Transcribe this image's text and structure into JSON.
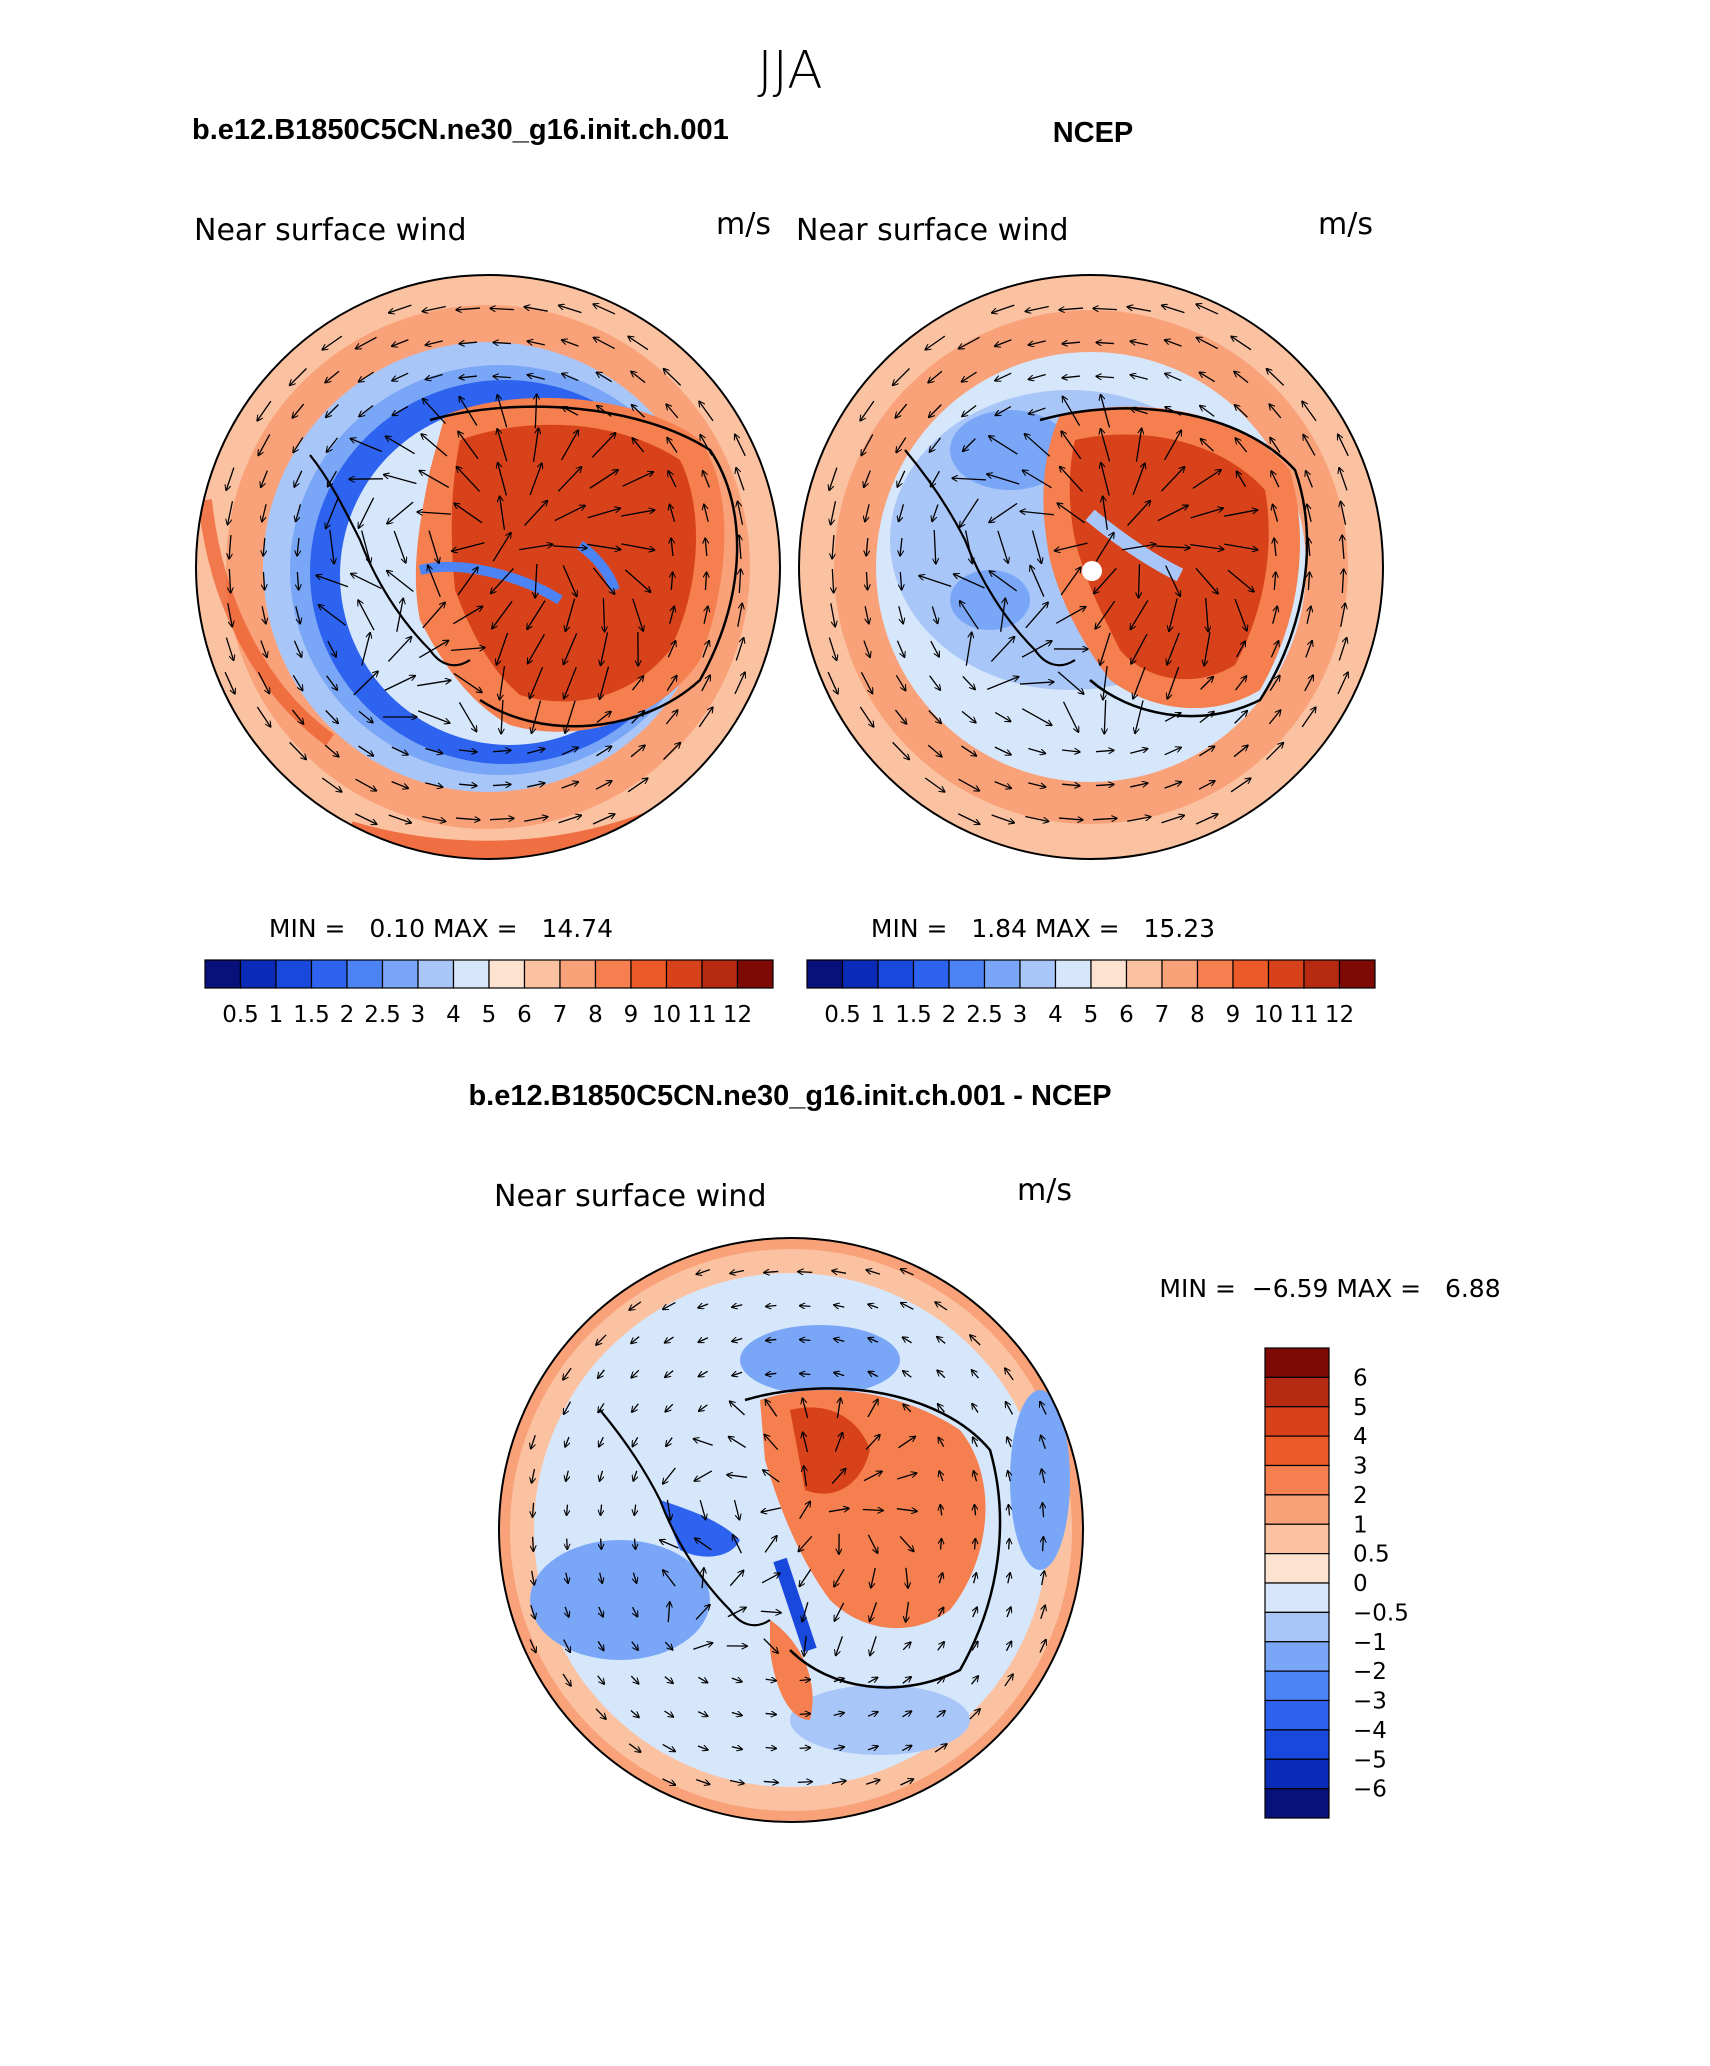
{
  "page_title": "JJA",
  "panels": [
    {
      "id": "model",
      "header": "b.e12.B1850C5CN.ne30_g16.init.ch.001",
      "variable": "Near surface wind",
      "units": "m/s",
      "stats": {
        "min_label": "MIN =",
        "min": "0.10",
        "max_label": "MAX =",
        "max": "14.74"
      }
    },
    {
      "id": "obs",
      "header": "NCEP",
      "variable": "Near surface wind",
      "units": "m/s",
      "stats": {
        "min_label": "MIN =",
        "min": "1.84",
        "max_label": "MAX =",
        "max": "15.23"
      }
    },
    {
      "id": "diff",
      "header": "b.e12.B1850C5CN.ne30_g16.init.ch.001 - NCEP",
      "variable": "Near surface wind",
      "units": "m/s",
      "stats": {
        "min_label": "MIN =",
        "min": "−6.59",
        "max_label": "MAX =",
        "max": "6.88"
      }
    }
  ],
  "colorbar_abs": {
    "labels": [
      "0.5",
      "1",
      "1.5",
      "2",
      "2.5",
      "3",
      "4",
      "5",
      "6",
      "7",
      "8",
      "9",
      "10",
      "11",
      "12"
    ],
    "colors": [
      "#08107a",
      "#0a2bb8",
      "#1848dc",
      "#2e63ef",
      "#4d84f5",
      "#7aa6f7",
      "#a9c6f9",
      "#d6e6fb",
      "#fde3cf",
      "#fbc2a2",
      "#f9a27a",
      "#f57f4e",
      "#ec5a2a",
      "#d8421a",
      "#b52a10",
      "#7e0a06"
    ]
  },
  "colorbar_diff": {
    "labels": [
      "6",
      "5",
      "4",
      "3",
      "2",
      "1",
      "0.5",
      "0",
      "−0.5",
      "−1",
      "−2",
      "−3",
      "−4",
      "−5",
      "−6"
    ],
    "colors": [
      "#7e0a06",
      "#b52a10",
      "#d8421a",
      "#ec5a2a",
      "#f57f4e",
      "#f9a27a",
      "#fbc2a2",
      "#fde3cf",
      "#d6e6fb",
      "#a9c6f9",
      "#7aa6f7",
      "#4d84f5",
      "#2e63ef",
      "#1848dc",
      "#0a2bb8",
      "#08107a"
    ]
  }
}
